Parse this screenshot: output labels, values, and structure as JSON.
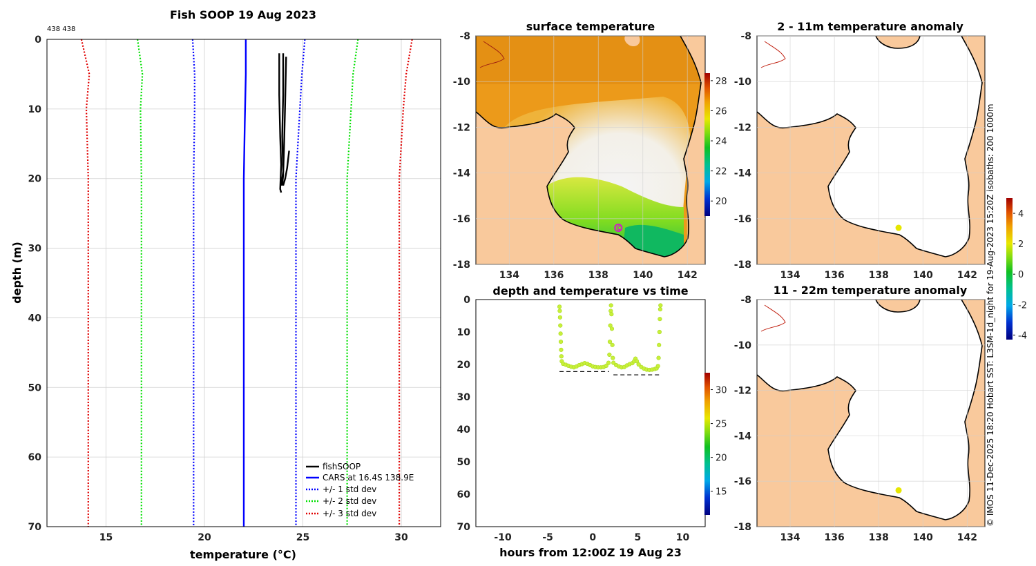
{
  "figure": {
    "credit": "© IMOS 11-Dec-2025 18:20 Hobart SST: L3SM-1d_night for 19-Aug-2023 15:20Z isobaths: 200  1000m"
  },
  "colors": {
    "fishsoop": "#000000",
    "cars": "#0000ff",
    "std1": "#0000ff",
    "std2": "#00e000",
    "std3": "#e00000",
    "land": "#f9c99c",
    "marker": "#e6e600"
  },
  "chart_data": [
    {
      "id": "profile",
      "type": "line",
      "title": "Fish SOOP 19 Aug 2023",
      "annotation": "438 438",
      "xlabel": "temperature (°C)",
      "ylabel": "depth (m)",
      "xlim": [
        12,
        32
      ],
      "ylim": [
        70,
        0
      ],
      "xticks": [
        15,
        20,
        25,
        30
      ],
      "yticks": [
        0,
        10,
        20,
        30,
        40,
        50,
        60,
        70
      ],
      "legend_position": "bottom-right",
      "series": [
        {
          "name": "fishSOOP",
          "style": "solid",
          "color": "#000000",
          "segments": [
            [
              [
                23.8,
                2
              ],
              [
                23.8,
                8
              ],
              [
                23.85,
                14
              ],
              [
                23.9,
                18
              ],
              [
                23.85,
                21.5
              ],
              [
                23.9,
                22
              ]
            ],
            [
              [
                24.0,
                2
              ],
              [
                24.0,
                8
              ],
              [
                23.95,
                14
              ],
              [
                24.0,
                19
              ],
              [
                23.9,
                21
              ]
            ],
            [
              [
                24.15,
                2.5
              ],
              [
                24.1,
                9
              ],
              [
                24.05,
                15
              ],
              [
                24.0,
                19.5
              ],
              [
                23.95,
                21
              ]
            ],
            [
              [
                24.3,
                16
              ],
              [
                24.2,
                18.5
              ],
              [
                24.1,
                20
              ],
              [
                24.0,
                21
              ]
            ]
          ]
        },
        {
          "name": "CARS at 16.4S 138.9E",
          "style": "solid",
          "color": "#0000ff",
          "points": [
            [
              22.1,
              0
            ],
            [
              22.1,
              5
            ],
            [
              22.05,
              12
            ],
            [
              22.0,
              20
            ],
            [
              22.0,
              70
            ]
          ]
        },
        {
          "name": "+/- 1 std dev",
          "style": "dotted",
          "color": "#0000ff",
          "left": [
            [
              19.4,
              0
            ],
            [
              19.5,
              5
            ],
            [
              19.5,
              10
            ],
            [
              19.45,
              20
            ],
            [
              19.45,
              70
            ]
          ],
          "right": [
            [
              25.1,
              0
            ],
            [
              24.95,
              5
            ],
            [
              24.85,
              10
            ],
            [
              24.65,
              20
            ],
            [
              24.65,
              70
            ]
          ]
        },
        {
          "name": "+/- 2 std dev",
          "style": "dotted",
          "color": "#00e000",
          "left": [
            [
              16.6,
              0
            ],
            [
              16.85,
              5
            ],
            [
              16.75,
              10
            ],
            [
              16.8,
              20
            ],
            [
              16.8,
              70
            ]
          ],
          "right": [
            [
              27.8,
              0
            ],
            [
              27.55,
              5
            ],
            [
              27.45,
              10
            ],
            [
              27.25,
              20
            ],
            [
              27.25,
              70
            ]
          ]
        },
        {
          "name": "+/- 3 std dev",
          "style": "dotted",
          "color": "#e00000",
          "left": [
            [
              13.75,
              0
            ],
            [
              14.15,
              5
            ],
            [
              14.0,
              10
            ],
            [
              14.1,
              20
            ],
            [
              14.1,
              70
            ]
          ],
          "right": [
            [
              30.55,
              0
            ],
            [
              30.25,
              5
            ],
            [
              30.1,
              10
            ],
            [
              29.9,
              20
            ],
            [
              29.9,
              70
            ]
          ]
        }
      ]
    },
    {
      "id": "surface",
      "type": "heatmap",
      "title": "surface temperature",
      "xlim": [
        132.5,
        142.8
      ],
      "ylim": [
        -18,
        -8
      ],
      "xticks": [
        134,
        136,
        138,
        140,
        142
      ],
      "yticks": [
        -8,
        -10,
        -12,
        -14,
        -16,
        -18
      ],
      "colorbar": {
        "min": 19,
        "max": 28.5,
        "ticks": [
          20,
          22,
          24,
          26,
          28
        ]
      },
      "marker": {
        "lon": 138.9,
        "lat": -16.4
      }
    },
    {
      "id": "anom1",
      "type": "heatmap",
      "title": "2 - 11m temperature anomaly",
      "xlim": [
        132.5,
        142.8
      ],
      "ylim": [
        -18,
        -8
      ],
      "xticks": [
        134,
        136,
        138,
        140,
        142
      ],
      "yticks": [
        -8,
        -10,
        -12,
        -14,
        -16,
        -18
      ],
      "marker": {
        "lon": 138.9,
        "lat": -16.4
      }
    },
    {
      "id": "anom2",
      "type": "heatmap",
      "title": "11 - 22m temperature anomaly",
      "xlim": [
        132.5,
        142.8
      ],
      "ylim": [
        -18,
        -8
      ],
      "xticks": [
        134,
        136,
        138,
        140,
        142
      ],
      "yticks": [
        -8,
        -10,
        -12,
        -14,
        -16,
        -18
      ],
      "marker": {
        "lon": 138.9,
        "lat": -16.4
      }
    },
    {
      "id": "anom_colorbar",
      "type": "heatmap",
      "colorbar": {
        "min": -4.3,
        "max": 5,
        "ticks": [
          -4,
          -2,
          0,
          2,
          4
        ]
      }
    },
    {
      "id": "timeseries",
      "type": "scatter",
      "title": "depth and temperature vs time",
      "xlabel": "hours from 12:00Z 19 Aug 23",
      "xlim": [
        -13,
        12.5
      ],
      "ylim": [
        70,
        0
      ],
      "xticks": [
        -10,
        -5,
        0,
        5,
        10
      ],
      "yticks": [
        0,
        10,
        20,
        30,
        40,
        50,
        60,
        70
      ],
      "colorbar": {
        "min": 11.5,
        "max": 32.5,
        "ticks": [
          15,
          20,
          25,
          30
        ]
      },
      "point_color_temp": 23.9,
      "depth": [
        [
          -3.7,
          2.2
        ],
        [
          -3.67,
          3.5
        ],
        [
          -3.64,
          5.5
        ],
        [
          -3.61,
          8
        ],
        [
          -3.58,
          10.5
        ],
        [
          -3.55,
          13
        ],
        [
          -3.52,
          15.5
        ],
        [
          -3.49,
          17.5
        ],
        [
          -3.45,
          19
        ],
        [
          -3.3,
          19.8
        ],
        [
          -3.0,
          20.1
        ],
        [
          -2.7,
          20.4
        ],
        [
          -2.4,
          20.7
        ],
        [
          -2.1,
          20.9
        ],
        [
          -1.8,
          20.6
        ],
        [
          -1.5,
          20.2
        ],
        [
          -1.2,
          19.9
        ],
        [
          -0.9,
          19.6
        ],
        [
          -0.6,
          19.8
        ],
        [
          -0.3,
          20.2
        ],
        [
          0.0,
          20.6
        ],
        [
          0.3,
          20.8
        ],
        [
          0.6,
          20.9
        ],
        [
          0.9,
          20.9
        ],
        [
          1.2,
          20.8
        ],
        [
          1.5,
          20.4
        ],
        [
          1.75,
          19.5
        ],
        [
          1.85,
          17
        ],
        [
          1.9,
          13
        ],
        [
          1.95,
          8
        ],
        [
          2.0,
          3.5
        ],
        [
          2.03,
          1.8
        ],
        [
          2.08,
          4.5
        ],
        [
          2.13,
          9
        ],
        [
          2.18,
          14
        ],
        [
          2.23,
          18
        ],
        [
          2.3,
          19.5
        ],
        [
          2.6,
          20.2
        ],
        [
          2.9,
          20.6
        ],
        [
          3.2,
          20.9
        ],
        [
          3.5,
          20.8
        ],
        [
          3.8,
          20.3
        ],
        [
          4.1,
          19.9
        ],
        [
          4.4,
          19.6
        ],
        [
          4.6,
          19
        ],
        [
          4.75,
          18.2
        ],
        [
          4.9,
          19
        ],
        [
          5.1,
          20
        ],
        [
          5.4,
          20.8
        ],
        [
          5.7,
          21.3
        ],
        [
          6.0,
          21.6
        ],
        [
          6.3,
          21.7
        ],
        [
          6.6,
          21.6
        ],
        [
          6.9,
          21.4
        ],
        [
          7.1,
          21.2
        ],
        [
          7.25,
          20.5
        ],
        [
          7.32,
          18
        ],
        [
          7.37,
          14
        ],
        [
          7.42,
          10
        ],
        [
          7.46,
          6
        ],
        [
          7.5,
          3
        ],
        [
          7.53,
          1.8
        ]
      ],
      "bottom_dashes": [
        [
          -3.7,
          22.2
        ],
        [
          1.8,
          22.2
        ],
        [
          2.3,
          23.2
        ],
        [
          7.5,
          23.2
        ]
      ]
    }
  ]
}
